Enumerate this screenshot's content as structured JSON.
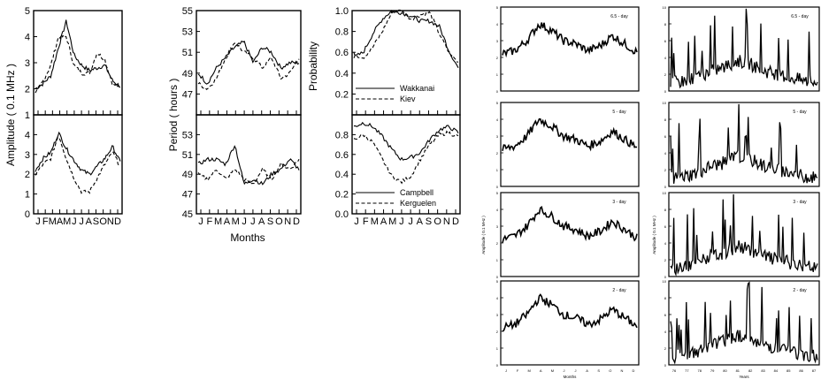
{
  "chart_data": {
    "left_group": {
      "month_ticks": [
        "J",
        "F",
        "M",
        "A",
        "M",
        "J",
        "J",
        "A",
        "S",
        "O",
        "N",
        "D"
      ],
      "panels": [
        {
          "id": "amp-top",
          "type": "line",
          "ylim": [
            1,
            5
          ],
          "yticks": [
            1,
            2,
            3,
            4,
            5
          ],
          "series": [
            {
              "style": "solid",
              "values": [
                2.0,
                2.2,
                2.5,
                3.6,
                4.6,
                3.3,
                2.9,
                2.7,
                2.8,
                2.9,
                2.3,
                2.1
              ]
            },
            {
              "style": "dashed",
              "values": [
                1.8,
                2.3,
                2.9,
                4.0,
                4.0,
                2.9,
                2.6,
                2.6,
                3.4,
                3.1,
                2.2,
                2.0
              ]
            }
          ]
        },
        {
          "id": "per-top",
          "type": "line",
          "ylim": [
            45,
            55
          ],
          "yticks": [
            47,
            49,
            51,
            53,
            55
          ],
          "series": [
            {
              "style": "solid",
              "values": [
                49.0,
                48.0,
                49.5,
                50.5,
                51.5,
                52.0,
                50.0,
                51.5,
                51.0,
                49.5,
                50.0,
                50.0
              ]
            },
            {
              "style": "dashed",
              "values": [
                48.0,
                47.5,
                48.5,
                50.5,
                52.0,
                51.0,
                50.5,
                49.5,
                50.5,
                48.5,
                49.0,
                50.5
              ]
            }
          ]
        },
        {
          "id": "prob-top",
          "type": "line",
          "ylim": [
            0,
            1.0
          ],
          "yticks": [
            0.2,
            0.4,
            0.6,
            0.8,
            1.0
          ],
          "series": [
            {
              "name": "Wakkanai",
              "style": "solid",
              "values": [
                0.55,
                0.6,
                0.78,
                0.92,
                1.0,
                0.98,
                0.95,
                0.9,
                0.9,
                0.85,
                0.62,
                0.45
              ]
            },
            {
              "name": "Kiev",
              "style": "dashed",
              "values": [
                0.58,
                0.55,
                0.65,
                0.8,
                0.98,
                1.0,
                0.92,
                0.96,
                0.98,
                0.78,
                0.6,
                0.5
              ]
            }
          ]
        },
        {
          "id": "amp-bot",
          "type": "line",
          "ylim": [
            0,
            5
          ],
          "yticks": [
            0,
            1,
            2,
            3,
            4
          ],
          "series": [
            {
              "style": "solid",
              "values": [
                2.2,
                2.8,
                3.1,
                4.1,
                3.3,
                2.7,
                2.2,
                2.0,
                2.4,
                2.8,
                3.4,
                2.6
              ]
            },
            {
              "style": "dashed",
              "values": [
                2.0,
                2.5,
                2.8,
                4.0,
                2.8,
                1.8,
                1.1,
                1.1,
                1.8,
                2.5,
                3.1,
                2.4
              ]
            }
          ]
        },
        {
          "id": "per-bot",
          "type": "line",
          "ylim": [
            45,
            55
          ],
          "yticks": [
            45,
            47,
            49,
            51,
            53
          ],
          "series": [
            {
              "style": "solid",
              "values": [
                50.0,
                50.5,
                50.5,
                50.0,
                52.0,
                48.0,
                48.5,
                48.0,
                49.0,
                49.5,
                50.5,
                49.5
              ]
            },
            {
              "style": "dashed",
              "values": [
                49.0,
                48.5,
                49.5,
                48.5,
                49.5,
                48.5,
                48.0,
                49.5,
                48.5,
                50.0,
                49.5,
                50.5
              ]
            }
          ]
        },
        {
          "id": "prob-bot",
          "type": "line",
          "ylim": [
            0,
            1.0
          ],
          "yticks": [
            0.0,
            0.2,
            0.4,
            0.6,
            0.8
          ],
          "series": [
            {
              "name": "Campbell",
              "style": "solid",
              "values": [
                0.88,
                0.92,
                0.88,
                0.78,
                0.65,
                0.55,
                0.57,
                0.62,
                0.75,
                0.85,
                0.88,
                0.82
              ]
            },
            {
              "name": "Kerguelen",
              "style": "dashed",
              "values": [
                0.75,
                0.8,
                0.72,
                0.55,
                0.38,
                0.32,
                0.38,
                0.55,
                0.7,
                0.8,
                0.82,
                0.78
              ]
            }
          ]
        }
      ],
      "ylabels": [
        "Amplitude ( 0.1 MHz )",
        "Period ( hours )",
        "Probability"
      ],
      "xlabel": "Months"
    },
    "right_group": {
      "left_column": {
        "month_ticks": [
          "J",
          "F",
          "M",
          "A",
          "M",
          "J",
          "J",
          "A",
          "S",
          "O",
          "N",
          "D"
        ],
        "annotations": [
          "6.5 - day",
          "5 - day",
          "3 - day",
          "2 - day"
        ],
        "ylim": [
          0,
          5
        ],
        "profile": [
          2.2,
          2.4,
          3.0,
          4.0,
          3.6,
          3.0,
          2.8,
          2.4,
          2.7,
          3.3,
          2.8,
          2.3
        ],
        "xlabel": "Months",
        "ylabel": "Amplitude ( 0.1 MHz )"
      },
      "right_column": {
        "year_ticks": [
          "76",
          "77",
          "78",
          "79",
          "80",
          "81",
          "82",
          "83",
          "84",
          "85",
          "86",
          "87"
        ],
        "annotations": [
          "6.5 - day",
          "5 - day",
          "3 - day",
          "2 - day"
        ],
        "ylim": [
          0,
          10
        ],
        "profile": [
          1.2,
          1.5,
          2.0,
          3.0,
          3.5,
          4.5,
          4.0,
          3.0,
          2.5,
          2.0,
          1.5,
          1.2
        ],
        "xlabel": "Years",
        "ylabel": "Amplitude ( 0.1 MHz )"
      }
    }
  }
}
